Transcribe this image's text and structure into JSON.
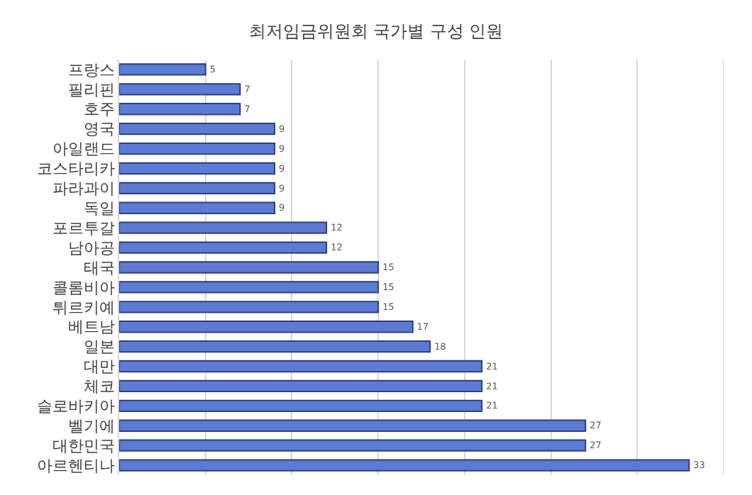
{
  "chart_data": {
    "type": "bar",
    "orientation": "horizontal",
    "title": "최저임금위원회 국가별 구성 인원",
    "categories": [
      "프랑스",
      "필리핀",
      "호주",
      "영국",
      "아일랜드",
      "코스타리카",
      "파라과이",
      "독일",
      "포르투갈",
      "남아공",
      "태국",
      "콜롬비아",
      "튀르키예",
      "베트남",
      "일본",
      "대만",
      "체코",
      "슬로바키아",
      "벨기에",
      "대한민국",
      "아르헨티나"
    ],
    "values": [
      5,
      7,
      7,
      9,
      9,
      9,
      9,
      9,
      12,
      12,
      15,
      15,
      15,
      17,
      18,
      21,
      21,
      21,
      27,
      27,
      33
    ],
    "color": "#5b7bd5",
    "xlim": [
      0,
      35
    ],
    "xticks": [
      {
        "value": 0,
        "label": null
      },
      {
        "value": 5,
        "label": null
      },
      {
        "value": 10,
        "label": null
      },
      {
        "value": 15,
        "label": null
      },
      {
        "value": 20,
        "label": null
      },
      {
        "value": 25,
        "label": null
      },
      {
        "value": 30,
        "label": null
      },
      {
        "value": 35,
        "label": null
      }
    ],
    "grid": "x",
    "tick_labels": "y",
    "data_labels": true,
    "legend": false
  }
}
